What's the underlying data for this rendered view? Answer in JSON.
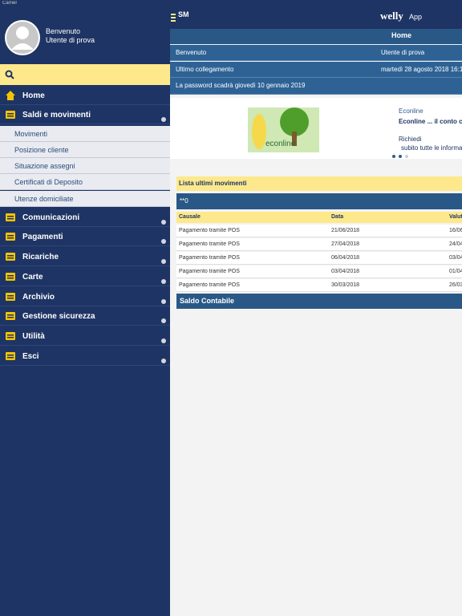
{
  "status_bar": {
    "carrier": "Carrier"
  },
  "sidebar": {
    "greeting": "Benvenuto",
    "user": "Utente di prova",
    "menu": [
      {
        "label": "Home"
      },
      {
        "label": "Saldi e movimenti",
        "submenu": [
          "Movimenti",
          "Posizione cliente",
          "Situazione assegni",
          "Certificati di Deposito",
          "Utenze domiciliate"
        ]
      },
      {
        "label": "Comunicazioni"
      },
      {
        "label": "Pagamenti"
      },
      {
        "label": "Ricariche"
      },
      {
        "label": "Carte"
      },
      {
        "label": "Archivio"
      },
      {
        "label": "Gestione sicurezza"
      },
      {
        "label": "Utilità"
      },
      {
        "label": "Esci"
      }
    ]
  },
  "header": {
    "logo": "SM",
    "brand": "welly",
    "brand_suffix": "App"
  },
  "page": {
    "title": "Home",
    "info_rows": [
      [
        "Benvenuto",
        "Utente di prova"
      ],
      [
        "Ultimo collegamento",
        "martedì 28 agosto 2018 16:1"
      ]
    ],
    "password_notice": "La password scadrà giovedì 10 gennaio 2019",
    "banner": {
      "image_text": "econline",
      "title": "Econline",
      "subtitle": "Econline ... il conto c",
      "line1": "Richiedi",
      "line2": "subito tutte le informa"
    },
    "movements": {
      "title": "Lista ultimi movimenti",
      "account": "**0",
      "columns": [
        "Causale",
        "Data",
        "Valut"
      ],
      "rows": [
        [
          "Pagamento tramite POS",
          "21/06/2018",
          "16/06/2"
        ],
        [
          "Pagamento tramite POS",
          "27/04/2018",
          "24/04/2"
        ],
        [
          "Pagamento tramite POS",
          "06/04/2018",
          "03/04/2"
        ],
        [
          "Pagamento tramite POS",
          "03/04/2018",
          "01/04/2"
        ],
        [
          "Pagamento tramite POS",
          "30/03/2018",
          "26/03/2"
        ]
      ],
      "footer": "Saldo Contabile"
    }
  }
}
